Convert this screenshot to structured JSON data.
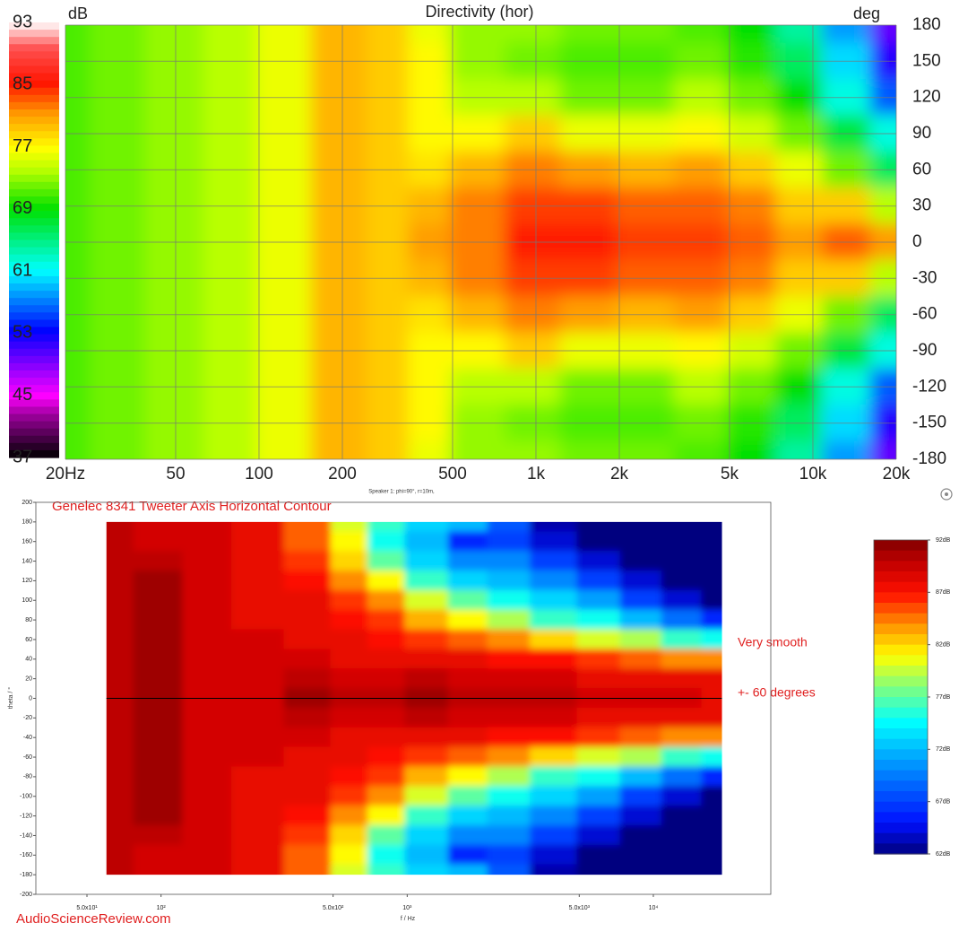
{
  "chart_data": [
    {
      "type": "heatmap",
      "title": "Directivity (hor)",
      "colorbar_label": "dB",
      "y_unit_label": "deg",
      "footnote": "Speaker 1: phi=90°, r=10m,",
      "log_x": true,
      "grid": true,
      "xlim": [
        20,
        20000
      ],
      "ylim": [
        -180,
        180
      ],
      "zlim": [
        37,
        93
      ],
      "xticks": [
        {
          "value": 20,
          "label": "20Hz"
        },
        50,
        100,
        200,
        500,
        {
          "value": 1000,
          "label": "1k"
        },
        {
          "value": 2000,
          "label": "2k"
        },
        {
          "value": 5000,
          "label": "5k"
        },
        {
          "value": 10000,
          "label": "10k"
        },
        {
          "value": 20000,
          "label": "20k"
        }
      ],
      "yticks": [
        180,
        150,
        120,
        90,
        60,
        30,
        0,
        -30,
        -60,
        -90,
        -120,
        -150,
        -180
      ],
      "colorbar_ticks": [
        93,
        85,
        77,
        69,
        61,
        53,
        45,
        37
      ],
      "x": [
        20,
        30,
        50,
        80,
        120,
        200,
        300,
        400,
        600,
        1000,
        1500,
        2500,
        4000,
        6000,
        9000,
        13000,
        20000
      ],
      "y": [
        180,
        150,
        120,
        90,
        60,
        30,
        0,
        -30,
        -60,
        -90,
        -120,
        -150,
        -180
      ],
      "z": [
        [
          71,
          72,
          73,
          74,
          76,
          80,
          79,
          76,
          73,
          73,
          72,
          72,
          71,
          69,
          64,
          58,
          50
        ],
        [
          71,
          72,
          73,
          74,
          76,
          80,
          79,
          77,
          73,
          72,
          71,
          71,
          72,
          70,
          66,
          60,
          52
        ],
        [
          71,
          72,
          73,
          74,
          76,
          80,
          79,
          77,
          74,
          74,
          72,
          72,
          74,
          72,
          69,
          62,
          56
        ],
        [
          71,
          72,
          73,
          74,
          76,
          80,
          79,
          77,
          77,
          79,
          76,
          76,
          77,
          75,
          72,
          67,
          62
        ],
        [
          71,
          72,
          73,
          74,
          76,
          80,
          79,
          78,
          80,
          82,
          81,
          80,
          81,
          79,
          76,
          72,
          66
        ],
        [
          71,
          72,
          73,
          74,
          76,
          80,
          79,
          80,
          82,
          84,
          84,
          83,
          83,
          82,
          79,
          79,
          74
        ],
        [
          71,
          72,
          73,
          74,
          76,
          80,
          79,
          81,
          82,
          85,
          85,
          84,
          84,
          83,
          81,
          83,
          81
        ],
        [
          71,
          72,
          73,
          74,
          76,
          80,
          79,
          80,
          82,
          84,
          84,
          83,
          83,
          82,
          79,
          79,
          74
        ],
        [
          71,
          72,
          73,
          74,
          76,
          80,
          79,
          78,
          80,
          82,
          81,
          80,
          81,
          79,
          76,
          72,
          66
        ],
        [
          71,
          72,
          73,
          74,
          76,
          80,
          79,
          77,
          77,
          79,
          76,
          76,
          77,
          75,
          72,
          67,
          62
        ],
        [
          71,
          72,
          73,
          74,
          76,
          80,
          79,
          77,
          74,
          74,
          72,
          72,
          74,
          72,
          69,
          62,
          56
        ],
        [
          71,
          72,
          73,
          74,
          76,
          80,
          79,
          77,
          73,
          72,
          71,
          71,
          72,
          70,
          66,
          60,
          52
        ],
        [
          71,
          72,
          73,
          74,
          76,
          80,
          79,
          76,
          73,
          73,
          72,
          72,
          71,
          69,
          64,
          58,
          50
        ]
      ]
    },
    {
      "type": "heatmap",
      "title": "Genelec 8341 Tweeter Axis Horizontal Contour",
      "x_label": "f / Hz",
      "y_label": "theta / °",
      "annotations": [
        "Very smooth",
        "+- 60 degrees"
      ],
      "source": "AudioScienceReview.com",
      "log_x": true,
      "grid": false,
      "xlim": [
        31,
        30000
      ],
      "ylim": [
        -200,
        200
      ],
      "zlim": [
        62,
        92
      ],
      "xticks": [
        {
          "value": 50,
          "label": "5.0x10¹"
        },
        {
          "value": 100,
          "label": "10²"
        },
        {
          "value": 500,
          "label": "5.0x10²"
        },
        {
          "value": 1000,
          "label": "10³"
        },
        {
          "value": 5000,
          "label": "5.0x10³"
        },
        {
          "value": 10000,
          "label": "10⁴"
        }
      ],
      "yticks": [
        200,
        180,
        160,
        140,
        120,
        100,
        80,
        60,
        40,
        20,
        0,
        -20,
        -40,
        -60,
        -80,
        -100,
        -120,
        -140,
        -160,
        -180,
        -200
      ],
      "colorbar_ticks": [
        {
          "value": 92,
          "label": "92dB"
        },
        {
          "value": 87,
          "label": "87dB"
        },
        {
          "value": 82,
          "label": "82dB"
        },
        {
          "value": 77,
          "label": "77dB"
        },
        {
          "value": 72,
          "label": "72dB"
        },
        {
          "value": 67,
          "label": "67dB"
        },
        {
          "value": 62,
          "label": "62dB"
        }
      ],
      "x": [
        60,
        100,
        150,
        250,
        400,
        600,
        800,
        1200,
        1800,
        2500,
        4000,
        6000,
        9000,
        13000,
        19000
      ],
      "y": [
        180,
        160,
        140,
        120,
        100,
        80,
        60,
        40,
        20,
        0,
        -20,
        -40,
        -60,
        -80,
        -100,
        -120,
        -140,
        -160,
        -180
      ],
      "z": [
        [
          90,
          89,
          89,
          88,
          85,
          80,
          76,
          73,
          72,
          68,
          63,
          62,
          62,
          62,
          62
        ],
        [
          90,
          89,
          89,
          88,
          85,
          81,
          75,
          72,
          66,
          67,
          64,
          62,
          62,
          62,
          62
        ],
        [
          90,
          90,
          89,
          88,
          86,
          82,
          77,
          73,
          70,
          70,
          67,
          64,
          62,
          62,
          62
        ],
        [
          90,
          91,
          89,
          88,
          87,
          84,
          81,
          76,
          73,
          72,
          70,
          67,
          64,
          62,
          62
        ],
        [
          90,
          91,
          89,
          88,
          88,
          86,
          84,
          80,
          77,
          75,
          73,
          71,
          67,
          64,
          62
        ],
        [
          90,
          91,
          89,
          88,
          88,
          87,
          86,
          83,
          81,
          79,
          76,
          75,
          72,
          69,
          66
        ],
        [
          90,
          91,
          89,
          89,
          88,
          88,
          87,
          86,
          85,
          84,
          82,
          80,
          79,
          76,
          75
        ],
        [
          90,
          91,
          89,
          89,
          89,
          88,
          88,
          88,
          88,
          87,
          87,
          86,
          85,
          84,
          84
        ],
        [
          90,
          91,
          89,
          89,
          90,
          89,
          89,
          90,
          89,
          89,
          89,
          88,
          88,
          88,
          88
        ],
        [
          90,
          91,
          89,
          89,
          91,
          90,
          90,
          91,
          90,
          90,
          90,
          89,
          89,
          89,
          88
        ],
        [
          90,
          91,
          89,
          89,
          90,
          89,
          89,
          90,
          89,
          89,
          89,
          88,
          88,
          88,
          88
        ],
        [
          90,
          91,
          89,
          89,
          89,
          88,
          88,
          88,
          88,
          87,
          87,
          86,
          85,
          84,
          84
        ],
        [
          90,
          91,
          89,
          89,
          88,
          88,
          87,
          86,
          85,
          84,
          82,
          80,
          79,
          76,
          75
        ],
        [
          90,
          91,
          89,
          88,
          88,
          87,
          86,
          83,
          81,
          79,
          76,
          75,
          72,
          69,
          66
        ],
        [
          90,
          91,
          89,
          88,
          88,
          86,
          84,
          80,
          77,
          75,
          73,
          71,
          67,
          64,
          62
        ],
        [
          90,
          91,
          89,
          88,
          87,
          84,
          81,
          76,
          73,
          72,
          70,
          67,
          64,
          62,
          62
        ],
        [
          90,
          90,
          89,
          88,
          86,
          82,
          77,
          73,
          70,
          70,
          67,
          64,
          62,
          62,
          62
        ],
        [
          90,
          89,
          89,
          88,
          85,
          81,
          75,
          72,
          66,
          67,
          64,
          62,
          62,
          62,
          62
        ],
        [
          90,
          89,
          89,
          88,
          85,
          80,
          76,
          73,
          72,
          68,
          63,
          62,
          62,
          62,
          62
        ]
      ]
    }
  ]
}
